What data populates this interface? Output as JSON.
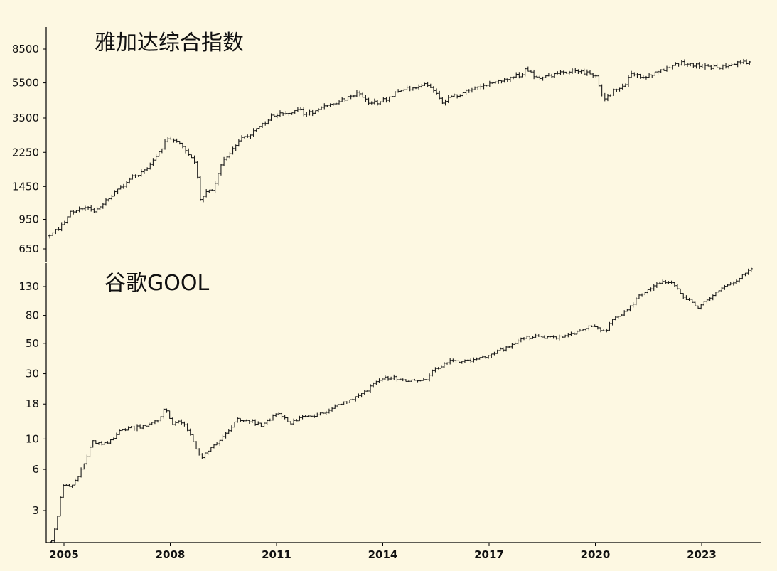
{
  "colors": {
    "background": "#fdf8e2",
    "bar": "#1a1a1a",
    "axis": "#000000"
  },
  "chart_data": [
    {
      "type": "ohlc",
      "title": "雅加达综合指数",
      "scale": "log",
      "ylim": [
        600,
        10000
      ],
      "yticks": [
        650,
        950,
        1450,
        2250,
        3500,
        5500,
        8500
      ],
      "ytick_labels": [
        "650",
        "950",
        "1450",
        "2250",
        "3500",
        "5500",
        "8500"
      ],
      "anchors": [
        [
          2004.6,
          780
        ],
        [
          2004.9,
          860
        ],
        [
          2005.2,
          1050
        ],
        [
          2005.6,
          1110
        ],
        [
          2005.85,
          1050
        ],
        [
          2006.3,
          1250
        ],
        [
          2006.6,
          1430
        ],
        [
          2006.9,
          1620
        ],
        [
          2007.3,
          1820
        ],
        [
          2007.9,
          2600
        ],
        [
          2008.05,
          2750
        ],
        [
          2008.4,
          2350
        ],
        [
          2008.7,
          2000
        ],
        [
          2008.85,
          1200
        ],
        [
          2009.0,
          1330
        ],
        [
          2009.2,
          1400
        ],
        [
          2009.5,
          2050
        ],
        [
          2010.0,
          2650
        ],
        [
          2010.7,
          3300
        ],
        [
          2010.9,
          3650
        ],
        [
          2011.4,
          3700
        ],
        [
          2011.7,
          4000
        ],
        [
          2011.8,
          3600
        ],
        [
          2012.3,
          4100
        ],
        [
          2012.8,
          4350
        ],
        [
          2013.3,
          4900
        ],
        [
          2013.55,
          4300
        ],
        [
          2013.9,
          4250
        ],
        [
          2014.5,
          5000
        ],
        [
          2014.9,
          5200
        ],
        [
          2015.3,
          5400
        ],
        [
          2015.7,
          4300
        ],
        [
          2015.9,
          4550
        ],
        [
          2016.5,
          5000
        ],
        [
          2016.8,
          5350
        ],
        [
          2017.3,
          5650
        ],
        [
          2017.9,
          6100
        ],
        [
          2018.0,
          6500
        ],
        [
          2018.4,
          5850
        ],
        [
          2018.9,
          6100
        ],
        [
          2019.3,
          6450
        ],
        [
          2019.8,
          6250
        ],
        [
          2020.0,
          6100
        ],
        [
          2020.2,
          4500
        ],
        [
          2020.6,
          5050
        ],
        [
          2020.8,
          5300
        ],
        [
          2021.0,
          6100
        ],
        [
          2021.4,
          6000
        ],
        [
          2021.9,
          6550
        ],
        [
          2022.3,
          7100
        ],
        [
          2022.7,
          7000
        ],
        [
          2023.0,
          6800
        ],
        [
          2023.5,
          6700
        ],
        [
          2023.9,
          7100
        ],
        [
          2024.2,
          7250
        ],
        [
          2024.35,
          7150
        ]
      ]
    },
    {
      "type": "ohlc",
      "title": "谷歌GOOL",
      "scale": "log",
      "ylim": [
        1.45,
        190
      ],
      "yticks": [
        3,
        6,
        10,
        18,
        30,
        50,
        80,
        130
      ],
      "ytick_labels": [
        "3",
        "6",
        "10",
        "18",
        "30",
        "50",
        "80",
        "130"
      ],
      "anchors": [
        [
          2004.65,
          1.8
        ],
        [
          2004.8,
          2.6
        ],
        [
          2004.95,
          4.6
        ],
        [
          2005.2,
          4.5
        ],
        [
          2005.4,
          5.3
        ],
        [
          2005.6,
          7.0
        ],
        [
          2005.8,
          9.5
        ],
        [
          2006.2,
          9.2
        ],
        [
          2006.6,
          11.5
        ],
        [
          2006.9,
          12.0
        ],
        [
          2007.3,
          12.5
        ],
        [
          2007.7,
          14.0
        ],
        [
          2007.85,
          17.5
        ],
        [
          2008.05,
          13.0
        ],
        [
          2008.3,
          13.5
        ],
        [
          2008.6,
          10.5
        ],
        [
          2008.85,
          7.3
        ],
        [
          2009.2,
          8.8
        ],
        [
          2009.6,
          11.0
        ],
        [
          2009.9,
          14.0
        ],
        [
          2010.3,
          13.5
        ],
        [
          2010.6,
          12.5
        ],
        [
          2011.0,
          15.5
        ],
        [
          2011.4,
          13.0
        ],
        [
          2011.8,
          15.0
        ],
        [
          2012.2,
          15.0
        ],
        [
          2012.6,
          17.0
        ],
        [
          2013.0,
          19.0
        ],
        [
          2013.5,
          22.0
        ],
        [
          2013.9,
          27.5
        ],
        [
          2014.3,
          28.0
        ],
        [
          2014.8,
          26.5
        ],
        [
          2015.2,
          27.0
        ],
        [
          2015.5,
          33.0
        ],
        [
          2015.9,
          37.0
        ],
        [
          2016.5,
          37.0
        ],
        [
          2017.0,
          41.0
        ],
        [
          2017.5,
          47.0
        ],
        [
          2018.0,
          55.0
        ],
        [
          2018.4,
          56.0
        ],
        [
          2018.8,
          55.0
        ],
        [
          2019.3,
          58.0
        ],
        [
          2019.9,
          67.0
        ],
        [
          2020.25,
          60.0
        ],
        [
          2020.5,
          74.0
        ],
        [
          2020.9,
          88.0
        ],
        [
          2021.3,
          115.0
        ],
        [
          2021.8,
          140.0
        ],
        [
          2022.2,
          135.0
        ],
        [
          2022.5,
          110.0
        ],
        [
          2022.9,
          92.0
        ],
        [
          2023.2,
          106.0
        ],
        [
          2023.6,
          128.0
        ],
        [
          2023.95,
          140.0
        ],
        [
          2024.2,
          165.0
        ],
        [
          2024.45,
          175.0
        ]
      ]
    }
  ],
  "x_axis": {
    "ticks": [
      2005,
      2008,
      2011,
      2014,
      2017,
      2020,
      2023
    ],
    "tick_labels": [
      "2005",
      "2008",
      "2011",
      "2014",
      "2017",
      "2020",
      "2023"
    ]
  }
}
